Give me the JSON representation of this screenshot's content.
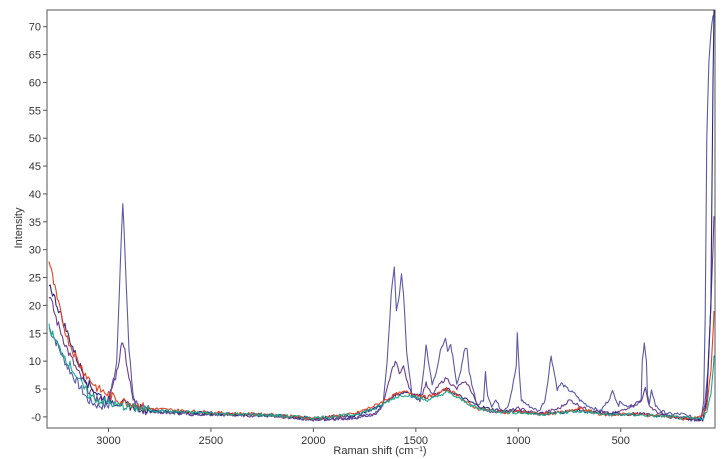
{
  "chart_data": {
    "type": "line",
    "title": "",
    "xlabel": "Raman shift (cm⁻¹)",
    "ylabel": "Intensity",
    "x_reversed": true,
    "xlim": [
      3300,
      40
    ],
    "ylim": [
      -2,
      73
    ],
    "x_ticks": [
      3000,
      2500,
      2000,
      1500,
      1000,
      500
    ],
    "y_ticks": [
      0,
      5,
      10,
      15,
      20,
      25,
      30,
      35,
      40,
      45,
      50,
      55,
      60,
      65,
      70
    ],
    "y_tick_labels": [
      "-0",
      "5",
      "10",
      "15",
      "20",
      "25",
      "30",
      "35",
      "40",
      "45",
      "50",
      "55",
      "60",
      "65",
      "70"
    ],
    "grid": false,
    "legend": "none",
    "series": [
      {
        "color": "#5a5aa8",
        "x": [
          3290,
          3250,
          3200,
          3150,
          3100,
          3050,
          3000,
          2960,
          2940,
          2930,
          2920,
          2900,
          2880,
          2850,
          2800,
          2600,
          2400,
          2200,
          2000,
          1800,
          1700,
          1660,
          1640,
          1620,
          1605,
          1595,
          1580,
          1570,
          1560,
          1545,
          1520,
          1480,
          1460,
          1450,
          1440,
          1420,
          1400,
          1380,
          1355,
          1345,
          1330,
          1320,
          1300,
          1280,
          1265,
          1250,
          1240,
          1220,
          1200,
          1170,
          1160,
          1150,
          1130,
          1110,
          1080,
          1050,
          1030,
          1010,
          1005,
          995,
          985,
          950,
          900,
          870,
          850,
          840,
          830,
          810,
          790,
          760,
          720,
          700,
          660,
          600,
          560,
          540,
          520,
          510,
          500,
          480,
          420,
          400,
          395,
          385,
          375,
          370,
          360,
          350,
          330,
          300,
          260,
          200,
          160,
          130,
          115,
          105,
          95,
          88,
          80,
          70,
          60,
          50,
          45
        ],
        "y": [
          16,
          13,
          9,
          6,
          3,
          2,
          2,
          10,
          30,
          38,
          30,
          12,
          4,
          1.5,
          1,
          0.5,
          0.5,
          0.2,
          -0.5,
          -0.2,
          0.5,
          2,
          10,
          22,
          27,
          19,
          22,
          25.5,
          22,
          12,
          4,
          3,
          9,
          13,
          10,
          6,
          8,
          12,
          14,
          12,
          13,
          11,
          6,
          8,
          12,
          12,
          8,
          5,
          2,
          3,
          8,
          4,
          2,
          3,
          1,
          2,
          5,
          9,
          15,
          8,
          3,
          2,
          1,
          3,
          8,
          11,
          9,
          5,
          6,
          5,
          4,
          3,
          2,
          1,
          3,
          4.5,
          3,
          2,
          3,
          2,
          2,
          3,
          10,
          13.5,
          10,
          4,
          2,
          5,
          2,
          1,
          0.5,
          0.5,
          0,
          -0.5,
          -0.2,
          0.5,
          3,
          18,
          50,
          64,
          69,
          72,
          72
        ]
      },
      {
        "color": "#6a3f8e",
        "x": [
          3290,
          3250,
          3200,
          3150,
          3100,
          3050,
          3000,
          2960,
          2940,
          2930,
          2920,
          2900,
          2880,
          2850,
          2800,
          2600,
          2400,
          2200,
          2000,
          1800,
          1700,
          1660,
          1640,
          1620,
          1600,
          1580,
          1560,
          1540,
          1520,
          1480,
          1460,
          1450,
          1440,
          1420,
          1400,
          1380,
          1350,
          1330,
          1300,
          1280,
          1250,
          1220,
          1200,
          1150,
          1100,
          1050,
          1000,
          950,
          900,
          850,
          800,
          750,
          700,
          650,
          600,
          550,
          500,
          450,
          400,
          380,
          360,
          330,
          300,
          250,
          200,
          150,
          110,
          90,
          75,
          60,
          50,
          45
        ],
        "y": [
          22,
          17,
          12,
          8,
          5,
          3,
          3,
          8,
          12,
          14,
          12,
          7,
          3,
          1.5,
          1,
          0.5,
          0.3,
          0.2,
          -0.5,
          -0.2,
          0.5,
          2,
          5,
          8,
          10,
          8,
          9,
          6,
          4,
          3,
          5,
          6,
          5,
          4,
          5,
          6,
          7,
          6,
          5,
          6,
          6,
          4,
          2,
          1,
          1,
          1,
          1.5,
          1,
          0.5,
          1,
          1.5,
          3,
          2,
          1,
          1,
          0.5,
          1,
          2,
          3,
          5,
          2,
          1,
          0.5,
          0,
          -0.3,
          -0.5,
          -0.5,
          2,
          8,
          20,
          30,
          36
        ]
      },
      {
        "color": "#2a2a80",
        "x": [
          3290,
          3250,
          3200,
          3150,
          3100,
          3050,
          3000,
          2950,
          2900,
          2850,
          2800,
          2600,
          2400,
          2200,
          2000,
          1800,
          1700,
          1650,
          1600,
          1550,
          1500,
          1450,
          1400,
          1350,
          1300,
          1250,
          1200,
          1150,
          1100,
          1050,
          1000,
          950,
          900,
          850,
          800,
          750,
          700,
          650,
          600,
          550,
          500,
          450,
          400,
          350,
          300,
          250,
          200,
          150,
          100,
          80,
          60,
          50,
          45
        ],
        "y": [
          24,
          20,
          15,
          10,
          6,
          4,
          3,
          2.5,
          2,
          1.5,
          1.2,
          0.8,
          0.5,
          0.3,
          -0.3,
          0.3,
          1.5,
          2.5,
          4,
          4.5,
          4,
          3.5,
          4,
          5,
          4,
          3,
          2,
          1.5,
          1.2,
          1,
          1,
          0.8,
          0.6,
          0.6,
          0.8,
          1,
          1.2,
          0.8,
          0.6,
          0.5,
          0.5,
          0.5,
          0.5,
          0.3,
          0.2,
          0,
          -0.2,
          -0.3,
          -0.5,
          3,
          20,
          60,
          73
        ]
      },
      {
        "color": "#e84020",
        "x": [
          3290,
          3250,
          3200,
          3150,
          3100,
          3050,
          3000,
          2950,
          2900,
          2850,
          2800,
          2600,
          2400,
          2200,
          2000,
          1800,
          1700,
          1650,
          1600,
          1550,
          1500,
          1450,
          1400,
          1350,
          1300,
          1250,
          1200,
          1150,
          1100,
          1050,
          1000,
          950,
          900,
          850,
          800,
          750,
          700,
          650,
          600,
          550,
          500,
          450,
          400,
          350,
          300,
          250,
          200,
          150,
          100,
          80,
          60,
          50,
          45
        ],
        "y": [
          28,
          21,
          14,
          10,
          7,
          5,
          4,
          3,
          2.5,
          2,
          1.5,
          1,
          0.6,
          0.4,
          -0.3,
          0.5,
          2,
          3,
          4,
          4.5,
          4,
          3.5,
          4,
          5,
          4,
          2.5,
          1.5,
          1.2,
          1,
          0.8,
          1,
          0.8,
          0.5,
          0.6,
          0.8,
          1,
          1.5,
          1,
          0.5,
          0.3,
          0.5,
          0.5,
          0.4,
          0.3,
          0.2,
          0,
          -0.3,
          -0.3,
          0.2,
          2,
          8,
          15,
          19
        ]
      },
      {
        "color": "#1aa88f",
        "x": [
          3290,
          3250,
          3200,
          3150,
          3100,
          3050,
          3000,
          2950,
          2900,
          2850,
          2800,
          2600,
          2400,
          2200,
          2000,
          1800,
          1700,
          1650,
          1600,
          1550,
          1500,
          1450,
          1400,
          1350,
          1300,
          1250,
          1200,
          1150,
          1100,
          1050,
          1000,
          950,
          900,
          850,
          800,
          750,
          700,
          650,
          600,
          550,
          500,
          450,
          400,
          350,
          300,
          250,
          200,
          150,
          100,
          80,
          60,
          50,
          45
        ],
        "y": [
          16,
          13,
          10,
          7,
          4,
          3,
          2.5,
          2,
          1.8,
          1.5,
          1.2,
          0.8,
          0.5,
          0.3,
          -0.2,
          0.4,
          1.5,
          2.5,
          3.5,
          4,
          3.5,
          3,
          3.5,
          4.5,
          3.5,
          2.5,
          1.5,
          1.2,
          1,
          0.8,
          0.8,
          0.6,
          0.5,
          0.5,
          0.7,
          0.9,
          1,
          0.8,
          0.5,
          0.4,
          0.4,
          0.4,
          0.3,
          0.2,
          0.1,
          0,
          -0.2,
          -0.3,
          -0.3,
          1,
          4,
          8,
          11
        ]
      }
    ]
  }
}
